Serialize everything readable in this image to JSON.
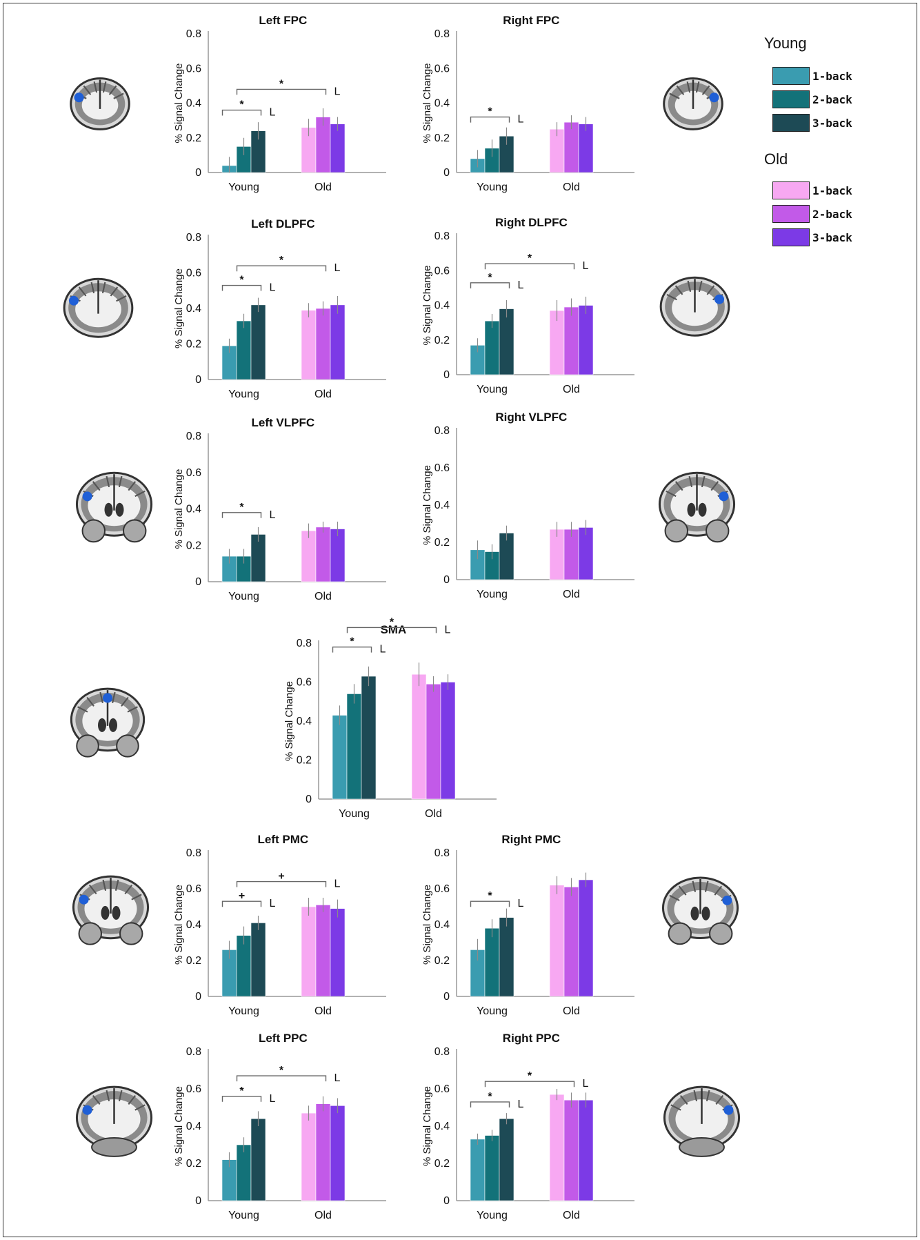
{
  "colors": {
    "young_1back": "#3a9cb0",
    "young_2back": "#137279",
    "young_3back": "#1d4a55",
    "old_1back": "#f7a8f2",
    "old_2back": "#c25ae8",
    "old_3back": "#7c3ae6",
    "error_bar": "#8a8a8a",
    "axis": "#999999",
    "roi_marker": "#1f5fd6"
  },
  "legend": {
    "groups": [
      {
        "name": "Young",
        "items": [
          "1-back",
          "2-back",
          "3-back"
        ],
        "colors": [
          "#3a9cb0",
          "#137279",
          "#1d4a55"
        ]
      },
      {
        "name": "Old",
        "items": [
          "1-back",
          "2-back",
          "3-back"
        ],
        "colors": [
          "#f7a8f2",
          "#c25ae8",
          "#7c3ae6"
        ]
      }
    ]
  },
  "chart_data": [
    {
      "id": "left-fpc",
      "type": "bar",
      "title": "Left FPC",
      "ylabel": "% Signal Change",
      "ylim": [
        0,
        0.8
      ],
      "yticks": [
        "0",
        "0.2",
        "0.4",
        "0.6",
        "0.8"
      ],
      "categories": [
        "Young",
        "Old"
      ],
      "series": [
        {
          "name": "1-back",
          "values": [
            0.04,
            0.26
          ],
          "errors": [
            0.05,
            0.05
          ]
        },
        {
          "name": "2-back",
          "values": [
            0.15,
            0.32
          ],
          "errors": [
            0.05,
            0.05
          ]
        },
        {
          "name": "3-back",
          "values": [
            0.24,
            0.28
          ],
          "errors": [
            0.05,
            0.04
          ]
        }
      ],
      "annotations": [
        {
          "from": "young_1",
          "to": "young_3",
          "y": 0.36,
          "marker": "*",
          "label": "L"
        },
        {
          "from": "young_2",
          "to": "old_2",
          "y": 0.48,
          "marker": "*",
          "label": "L"
        }
      ]
    },
    {
      "id": "right-fpc",
      "type": "bar",
      "title": "Right FPC",
      "ylabel": "% Signal Change",
      "ylim": [
        0,
        0.8
      ],
      "yticks": [
        "0",
        "0.2",
        "0.4",
        "0.6",
        "0.8"
      ],
      "categories": [
        "Young",
        "Old"
      ],
      "series": [
        {
          "name": "1-back",
          "values": [
            0.08,
            0.25
          ],
          "errors": [
            0.05,
            0.04
          ]
        },
        {
          "name": "2-back",
          "values": [
            0.14,
            0.29
          ],
          "errors": [
            0.05,
            0.04
          ]
        },
        {
          "name": "3-back",
          "values": [
            0.21,
            0.28
          ],
          "errors": [
            0.05,
            0.04
          ]
        }
      ],
      "annotations": [
        {
          "from": "young_1",
          "to": "young_3",
          "y": 0.32,
          "marker": "*",
          "label": "L"
        }
      ]
    },
    {
      "id": "left-dlpfc",
      "type": "bar",
      "title": "Left DLPFC",
      "ylabel": "% Signal Change",
      "ylim": [
        0,
        0.8
      ],
      "yticks": [
        "0",
        "0.2",
        "0.4",
        "0.6",
        "0.8"
      ],
      "categories": [
        "Young",
        "Old"
      ],
      "series": [
        {
          "name": "1-back",
          "values": [
            0.19,
            0.39
          ],
          "errors": [
            0.04,
            0.04
          ]
        },
        {
          "name": "2-back",
          "values": [
            0.33,
            0.4
          ],
          "errors": [
            0.04,
            0.04
          ]
        },
        {
          "name": "3-back",
          "values": [
            0.42,
            0.42
          ],
          "errors": [
            0.04,
            0.05
          ]
        }
      ],
      "annotations": [
        {
          "from": "young_1",
          "to": "young_3",
          "y": 0.53,
          "marker": "*",
          "label": "L"
        },
        {
          "from": "young_2",
          "to": "old_2",
          "y": 0.64,
          "marker": "*",
          "label": "L"
        }
      ]
    },
    {
      "id": "right-dlpfc",
      "type": "bar",
      "title": "Right DLPFC",
      "ylabel": "% Signal Change",
      "ylim": [
        0,
        0.8
      ],
      "yticks": [
        "0",
        "0.2",
        "0.4",
        "0.6",
        "0.8"
      ],
      "categories": [
        "Young",
        "Old"
      ],
      "series": [
        {
          "name": "1-back",
          "values": [
            0.17,
            0.37
          ],
          "errors": [
            0.04,
            0.06
          ]
        },
        {
          "name": "2-back",
          "values": [
            0.31,
            0.39
          ],
          "errors": [
            0.04,
            0.05
          ]
        },
        {
          "name": "3-back",
          "values": [
            0.38,
            0.4
          ],
          "errors": [
            0.05,
            0.05
          ]
        }
      ],
      "annotations": [
        {
          "from": "young_1",
          "to": "young_3",
          "y": 0.53,
          "marker": "*",
          "label": "L"
        },
        {
          "from": "young_2",
          "to": "old_2",
          "y": 0.64,
          "marker": "*",
          "label": "L"
        }
      ]
    },
    {
      "id": "left-vlpfc",
      "type": "bar",
      "title": "Left VLPFC",
      "ylabel": "% Signal Change",
      "ylim": [
        0,
        0.8
      ],
      "yticks": [
        "0",
        "0.2",
        "0.4",
        "0.6",
        "0.8"
      ],
      "categories": [
        "Young",
        "Old"
      ],
      "series": [
        {
          "name": "1-back",
          "values": [
            0.14,
            0.28
          ],
          "errors": [
            0.04,
            0.04
          ]
        },
        {
          "name": "2-back",
          "values": [
            0.14,
            0.3
          ],
          "errors": [
            0.04,
            0.03
          ]
        },
        {
          "name": "3-back",
          "values": [
            0.26,
            0.29
          ],
          "errors": [
            0.04,
            0.04
          ]
        }
      ],
      "annotations": [
        {
          "from": "young_1",
          "to": "young_3",
          "y": 0.38,
          "marker": "*",
          "label": "L"
        }
      ]
    },
    {
      "id": "right-vlpfc",
      "type": "bar",
      "title": "Right VLPFC",
      "ylabel": "% Signal Change",
      "ylim": [
        0,
        0.8
      ],
      "yticks": [
        "0",
        "0.2",
        "0.4",
        "0.6",
        "0.8"
      ],
      "categories": [
        "Young",
        "Old"
      ],
      "series": [
        {
          "name": "1-back",
          "values": [
            0.16,
            0.27
          ],
          "errors": [
            0.05,
            0.04
          ]
        },
        {
          "name": "2-back",
          "values": [
            0.15,
            0.27
          ],
          "errors": [
            0.04,
            0.04
          ]
        },
        {
          "name": "3-back",
          "values": [
            0.25,
            0.28
          ],
          "errors": [
            0.04,
            0.04
          ]
        }
      ],
      "annotations": []
    },
    {
      "id": "sma",
      "type": "bar",
      "title": "SMA",
      "ylabel": "% Signal Change",
      "ylim": [
        0,
        0.8
      ],
      "yticks": [
        "0",
        "0.2",
        "0.4",
        "0.6",
        "0.8"
      ],
      "categories": [
        "Young",
        "Old"
      ],
      "series": [
        {
          "name": "1-back",
          "values": [
            0.43,
            0.64
          ],
          "errors": [
            0.05,
            0.06
          ]
        },
        {
          "name": "2-back",
          "values": [
            0.54,
            0.59
          ],
          "errors": [
            0.05,
            0.04
          ]
        },
        {
          "name": "3-back",
          "values": [
            0.63,
            0.6
          ],
          "errors": [
            0.05,
            0.04
          ]
        }
      ],
      "annotations": [
        {
          "from": "young_1",
          "to": "young_3",
          "y": 0.78,
          "marker": "*",
          "label": "L"
        },
        {
          "from": "young_2",
          "to": "old_2",
          "y": 0.88,
          "marker": "*",
          "label": "L"
        }
      ]
    },
    {
      "id": "left-pmc",
      "type": "bar",
      "title": "Left PMC",
      "ylabel": "% Signal Change",
      "ylim": [
        0,
        0.8
      ],
      "yticks": [
        "0",
        "0.2",
        "0.4",
        "0.6",
        "0.8"
      ],
      "categories": [
        "Young",
        "Old"
      ],
      "series": [
        {
          "name": "1-back",
          "values": [
            0.26,
            0.5
          ],
          "errors": [
            0.05,
            0.05
          ]
        },
        {
          "name": "2-back",
          "values": [
            0.34,
            0.51
          ],
          "errors": [
            0.05,
            0.04
          ]
        },
        {
          "name": "3-back",
          "values": [
            0.41,
            0.49
          ],
          "errors": [
            0.04,
            0.05
          ]
        }
      ],
      "annotations": [
        {
          "from": "young_1",
          "to": "young_3",
          "y": 0.53,
          "marker": "+",
          "label": "L"
        },
        {
          "from": "young_2",
          "to": "old_2",
          "y": 0.64,
          "marker": "+",
          "label": "L"
        }
      ]
    },
    {
      "id": "right-pmc",
      "type": "bar",
      "title": "Right PMC",
      "ylabel": "% Signal Change",
      "ylim": [
        0,
        0.8
      ],
      "yticks": [
        "0",
        "0.2",
        "0.4",
        "0.6",
        "0.8"
      ],
      "categories": [
        "Young",
        "Old"
      ],
      "series": [
        {
          "name": "1-back",
          "values": [
            0.26,
            0.62
          ],
          "errors": [
            0.06,
            0.05
          ]
        },
        {
          "name": "2-back",
          "values": [
            0.38,
            0.61
          ],
          "errors": [
            0.05,
            0.05
          ]
        },
        {
          "name": "3-back",
          "values": [
            0.44,
            0.65
          ],
          "errors": [
            0.05,
            0.04
          ]
        }
      ],
      "annotations": [
        {
          "from": "young_1",
          "to": "young_3",
          "y": 0.53,
          "marker": "*",
          "label": "L"
        }
      ]
    },
    {
      "id": "left-ppc",
      "type": "bar",
      "title": "Left PPC",
      "ylabel": "% Signal Change",
      "ylim": [
        0,
        0.8
      ],
      "yticks": [
        "0",
        "0.2",
        "0.4",
        "0.6",
        "0.8"
      ],
      "categories": [
        "Young",
        "Old"
      ],
      "series": [
        {
          "name": "1-back",
          "values": [
            0.22,
            0.47
          ],
          "errors": [
            0.04,
            0.04
          ]
        },
        {
          "name": "2-back",
          "values": [
            0.3,
            0.52
          ],
          "errors": [
            0.04,
            0.04
          ]
        },
        {
          "name": "3-back",
          "values": [
            0.44,
            0.51
          ],
          "errors": [
            0.04,
            0.04
          ]
        }
      ],
      "annotations": [
        {
          "from": "young_1",
          "to": "young_3",
          "y": 0.56,
          "marker": "*",
          "label": "L"
        },
        {
          "from": "young_2",
          "to": "old_2",
          "y": 0.67,
          "marker": "*",
          "label": "L"
        }
      ]
    },
    {
      "id": "right-ppc",
      "type": "bar",
      "title": "Right PPC",
      "ylabel": "% Signal Change",
      "ylim": [
        0,
        0.8
      ],
      "yticks": [
        "0",
        "0.2",
        "0.4",
        "0.6",
        "0.8"
      ],
      "categories": [
        "Young",
        "Old"
      ],
      "series": [
        {
          "name": "1-back",
          "values": [
            0.33,
            0.57
          ],
          "errors": [
            0.03,
            0.03
          ]
        },
        {
          "name": "2-back",
          "values": [
            0.35,
            0.54
          ],
          "errors": [
            0.03,
            0.04
          ]
        },
        {
          "name": "3-back",
          "values": [
            0.44,
            0.54
          ],
          "errors": [
            0.03,
            0.04
          ]
        }
      ],
      "annotations": [
        {
          "from": "young_1",
          "to": "young_3",
          "y": 0.53,
          "marker": "*",
          "label": "L"
        },
        {
          "from": "young_2",
          "to": "old_2",
          "y": 0.64,
          "marker": "*",
          "label": "L"
        }
      ]
    }
  ],
  "brain_icons": [
    {
      "id": "left-fpc",
      "side": "left",
      "shape": "small"
    },
    {
      "id": "right-fpc",
      "side": "right",
      "shape": "small"
    },
    {
      "id": "left-dlpfc",
      "side": "left",
      "shape": "medium"
    },
    {
      "id": "right-dlpfc",
      "side": "right",
      "shape": "medium"
    },
    {
      "id": "left-vlpfc",
      "side": "left",
      "shape": "full"
    },
    {
      "id": "right-vlpfc",
      "side": "right",
      "shape": "full"
    },
    {
      "id": "sma",
      "side": "top",
      "shape": "full"
    },
    {
      "id": "left-pmc",
      "side": "left",
      "shape": "full"
    },
    {
      "id": "right-pmc",
      "side": "right",
      "shape": "full"
    },
    {
      "id": "left-ppc",
      "side": "left",
      "shape": "posterior"
    },
    {
      "id": "right-ppc",
      "side": "right",
      "shape": "posterior"
    }
  ]
}
